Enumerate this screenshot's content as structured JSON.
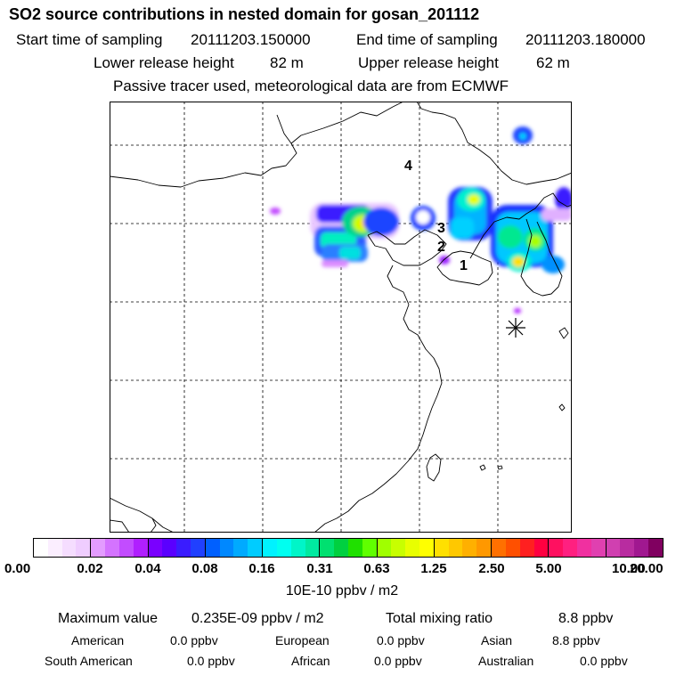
{
  "header": {
    "title": "SO2 source contributions in nested domain for gosan_201112",
    "start_label": "Start time of sampling",
    "start_value": "20111203.150000",
    "end_label": "End time of sampling",
    "end_value": "20111203.180000",
    "lower_label": "Lower release height",
    "lower_value": "82 m",
    "upper_label": "Upper release height",
    "upper_value": "62 m",
    "note": "Passive tracer used, meteorological data are from ECMWF"
  },
  "map": {
    "markers": [
      "1",
      "2",
      "3",
      "4"
    ],
    "station_symbol": "asterisk-icon"
  },
  "colorbar": {
    "ticks": [
      "0.00",
      "0.02",
      "0.04",
      "0.08",
      "0.16",
      "0.31",
      "0.63",
      "1.25",
      "2.50",
      "5.00",
      "10.00",
      "20.00"
    ],
    "colors": [
      [
        "#ffffff",
        "#fbeeff",
        "#f5ddff",
        "#efcdff"
      ],
      [
        "#e39cff",
        "#d473ff",
        "#c24cff",
        "#b01fff"
      ],
      [
        "#7a00ff",
        "#5a00ff",
        "#3a1cff",
        "#2040ff"
      ],
      [
        "#0060ff",
        "#0088ff",
        "#00aaff",
        "#00ccff"
      ],
      [
        "#00f2ff",
        "#00fff0",
        "#00f5c8",
        "#00eaa0"
      ],
      [
        "#00e070",
        "#00d040",
        "#20e000",
        "#60ff00"
      ],
      [
        "#a0ff00",
        "#c8ff00",
        "#e8ff00",
        "#ffff00"
      ],
      [
        "#ffe000",
        "#ffc800",
        "#ffb000",
        "#ff9800"
      ],
      [
        "#ff7000",
        "#ff5000",
        "#ff2020",
        "#ff0040"
      ],
      [
        "#ff1060",
        "#ff2080",
        "#f030a0",
        "#e040b0"
      ],
      [
        "#d040b0",
        "#b82ca0",
        "#a01890",
        "#800060"
      ]
    ],
    "unit": "10E-10 ppbv / m2"
  },
  "stats": {
    "max_label": "Maximum value",
    "max_value": "0.235E-09 ppbv / m2",
    "total_label": "Total mixing ratio",
    "total_value": "8.8 ppbv",
    "regions": [
      {
        "name": "American",
        "value": "0.0 ppbv"
      },
      {
        "name": "European",
        "value": "0.0 ppbv"
      },
      {
        "name": "Asian",
        "value": "8.8 ppbv"
      },
      {
        "name": "South American",
        "value": "0.0 ppbv"
      },
      {
        "name": "African",
        "value": "0.0 ppbv"
      },
      {
        "name": "Australian",
        "value": "0.0 ppbv"
      }
    ]
  }
}
